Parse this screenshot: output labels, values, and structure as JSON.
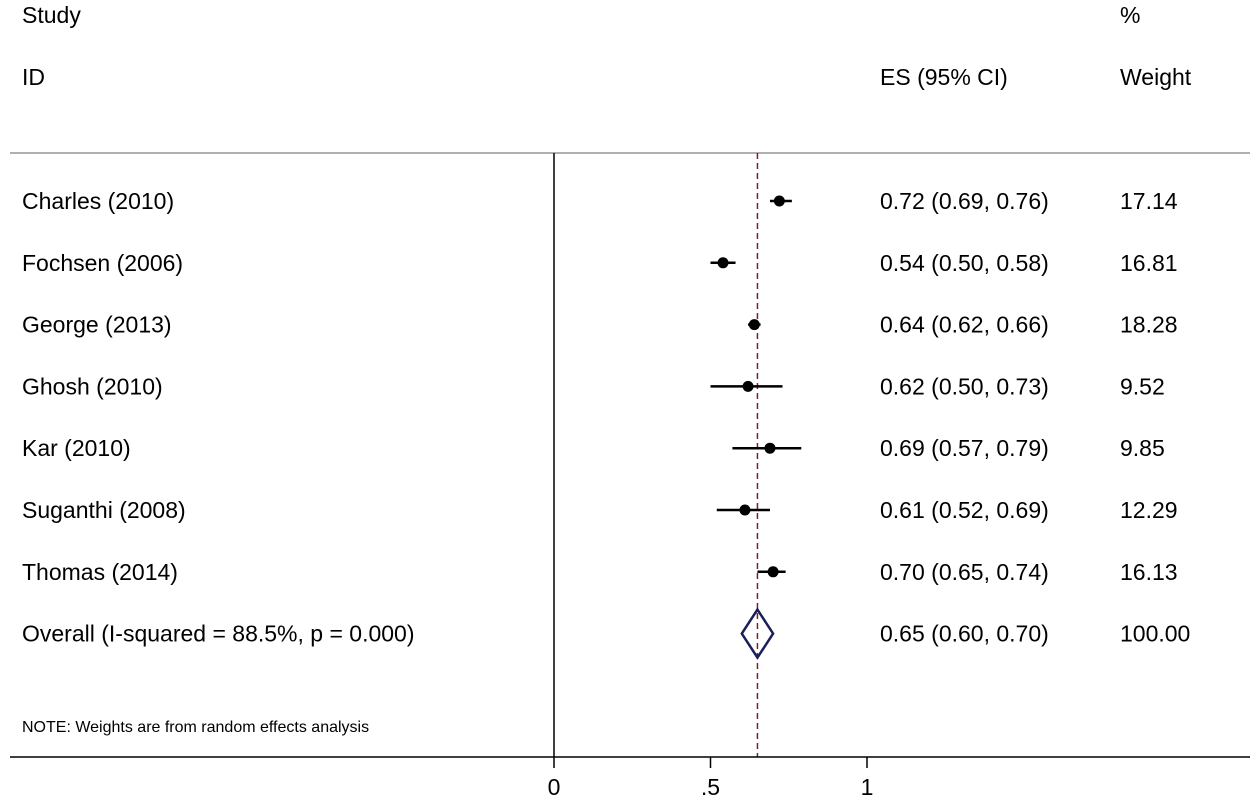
{
  "chart_data": {
    "type": "forest",
    "headers": {
      "study_line1": "Study",
      "study_line2": "ID",
      "es": "ES (95% CI)",
      "weight_line1": "%",
      "weight_line2": "Weight"
    },
    "studies": [
      {
        "label": "Charles (2010)",
        "es": 0.72,
        "lo": 0.69,
        "hi": 0.76,
        "es_text": "0.72 (0.69, 0.76)",
        "weight": "17.14"
      },
      {
        "label": "Fochsen (2006)",
        "es": 0.54,
        "lo": 0.5,
        "hi": 0.58,
        "es_text": "0.54 (0.50, 0.58)",
        "weight": "16.81"
      },
      {
        "label": "George (2013)",
        "es": 0.64,
        "lo": 0.62,
        "hi": 0.66,
        "es_text": "0.64 (0.62, 0.66)",
        "weight": "18.28"
      },
      {
        "label": "Ghosh (2010)",
        "es": 0.62,
        "lo": 0.5,
        "hi": 0.73,
        "es_text": "0.62 (0.50, 0.73)",
        "weight": "9.52"
      },
      {
        "label": "Kar (2010)",
        "es": 0.69,
        "lo": 0.57,
        "hi": 0.79,
        "es_text": "0.69 (0.57, 0.79)",
        "weight": "9.85"
      },
      {
        "label": "Suganthi (2008)",
        "es": 0.61,
        "lo": 0.52,
        "hi": 0.69,
        "es_text": "0.61 (0.52, 0.69)",
        "weight": "12.29"
      },
      {
        "label": "Thomas (2014)",
        "es": 0.7,
        "lo": 0.65,
        "hi": 0.74,
        "es_text": "0.70 (0.65, 0.74)",
        "weight": "16.13"
      }
    ],
    "overall": {
      "label": "Overall  (I-squared = 88.5%, p = 0.000)",
      "es": 0.65,
      "lo": 0.6,
      "hi": 0.7,
      "es_text": "0.65 (0.60, 0.70)",
      "weight": "100.00"
    },
    "note": "NOTE: Weights are from random effects analysis",
    "xaxis": {
      "range": [
        0,
        1
      ],
      "ticks": [
        {
          "value": 0,
          "label": "0"
        },
        {
          "value": 0.5,
          "label": ".5"
        },
        {
          "value": 1,
          "label": "1"
        }
      ]
    },
    "null_line": 0,
    "overall_line": 0.65,
    "colors": {
      "points": "#000000",
      "diamond": "#1a1f5c",
      "overall_line": "#7a1f2b",
      "rules": "#b0b0b0"
    }
  }
}
